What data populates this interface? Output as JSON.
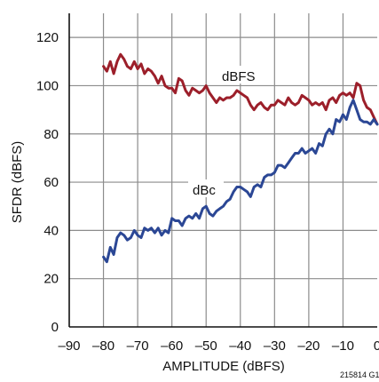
{
  "chart_data": {
    "type": "line",
    "xlabel": "AMPLITUDE (dBFS)",
    "ylabel": "SFDR (dBFS)",
    "xlim": [
      -90,
      0
    ],
    "ylim": [
      0,
      130
    ],
    "x_ticks": [
      -90,
      -80,
      -70,
      -60,
      -50,
      -40,
      -30,
      -20,
      -10,
      0
    ],
    "x_tick_labels": [
      "–90",
      "–80",
      "–70",
      "–60",
      "–50",
      "–40",
      "–30",
      "–20",
      "–10",
      "0"
    ],
    "y_ticks": [
      0,
      20,
      40,
      60,
      80,
      100,
      120
    ],
    "y_tick_labels": [
      "0",
      "20",
      "40",
      "60",
      "80",
      "100",
      "120"
    ],
    "grid": true,
    "legend": "none",
    "figure_id": "215814 G1",
    "series": [
      {
        "name": "dBFS",
        "color": "#9c1f2a",
        "x": [
          -80,
          -79,
          -78,
          -77,
          -76,
          -75,
          -74,
          -73,
          -72,
          -71,
          -70,
          -69,
          -68,
          -67,
          -66,
          -65,
          -64,
          -63,
          -62,
          -61,
          -60,
          -59,
          -58,
          -57,
          -56,
          -55,
          -54,
          -53,
          -52,
          -51,
          -50,
          -49,
          -48,
          -47,
          -46,
          -45,
          -44,
          -43,
          -42,
          -41,
          -40,
          -39,
          -38,
          -37,
          -36,
          -35,
          -34,
          -33,
          -32,
          -31,
          -30,
          -29,
          -28,
          -27,
          -26,
          -25,
          -24,
          -23,
          -22,
          -21,
          -20,
          -19,
          -18,
          -17,
          -16,
          -15,
          -14,
          -13,
          -12,
          -11,
          -10,
          -9,
          -8,
          -7,
          -6,
          -5,
          -4,
          -3,
          -2,
          -1,
          0
        ],
        "values": [
          108,
          106,
          110,
          105,
          110,
          113,
          111,
          108,
          107,
          110,
          107,
          109,
          105,
          107,
          106,
          104,
          101,
          104,
          100,
          99,
          99,
          97,
          103,
          102,
          98,
          96,
          99,
          98,
          97,
          98,
          100,
          97,
          95,
          93,
          95,
          94,
          95,
          95,
          96,
          98,
          97,
          96,
          95,
          92,
          90,
          92,
          93,
          91,
          90,
          92,
          92,
          94,
          93,
          92,
          95,
          93,
          92,
          93,
          96,
          95,
          94,
          92,
          93,
          92,
          93,
          90,
          94,
          95,
          93,
          96,
          97,
          96,
          97,
          95,
          101,
          100,
          94,
          91,
          90,
          87,
          84
        ]
      },
      {
        "name": "dBc",
        "color": "#2b4795",
        "x": [
          -80,
          -79,
          -78,
          -77,
          -76,
          -75,
          -74,
          -73,
          -72,
          -71,
          -70,
          -69,
          -68,
          -67,
          -66,
          -65,
          -64,
          -63,
          -62,
          -61,
          -60,
          -59,
          -58,
          -57,
          -56,
          -55,
          -54,
          -53,
          -52,
          -51,
          -50,
          -49,
          -48,
          -47,
          -46,
          -45,
          -44,
          -43,
          -42,
          -41,
          -40,
          -39,
          -38,
          -37,
          -36,
          -35,
          -34,
          -33,
          -32,
          -31,
          -30,
          -29,
          -28,
          -27,
          -26,
          -25,
          -24,
          -23,
          -22,
          -21,
          -20,
          -19,
          -18,
          -17,
          -16,
          -15,
          -14,
          -13,
          -12,
          -11,
          -10,
          -9,
          -8,
          -7,
          -6,
          -5,
          -4,
          -3,
          -2,
          -1,
          0
        ],
        "values": [
          29,
          27,
          33,
          30,
          37,
          39,
          38,
          36,
          37,
          40,
          38,
          37,
          41,
          40,
          41,
          39,
          41,
          38,
          40,
          39,
          45,
          44,
          44,
          42,
          45,
          46,
          45,
          47,
          45,
          49,
          50,
          47,
          46,
          48,
          49,
          50,
          52,
          53,
          56,
          58,
          58,
          57,
          56,
          54,
          58,
          59,
          58,
          62,
          63,
          63,
          64,
          67,
          67,
          66,
          68,
          70,
          72,
          72,
          74,
          72,
          73,
          74,
          72,
          76,
          75,
          80,
          82,
          80,
          86,
          85,
          88,
          86,
          91,
          94,
          90,
          86,
          85,
          85,
          84,
          86,
          84
        ]
      }
    ],
    "annotations": [
      {
        "text": "dBFS",
        "series": "dBFS"
      },
      {
        "text": "dBc",
        "series": "dBc"
      }
    ]
  }
}
